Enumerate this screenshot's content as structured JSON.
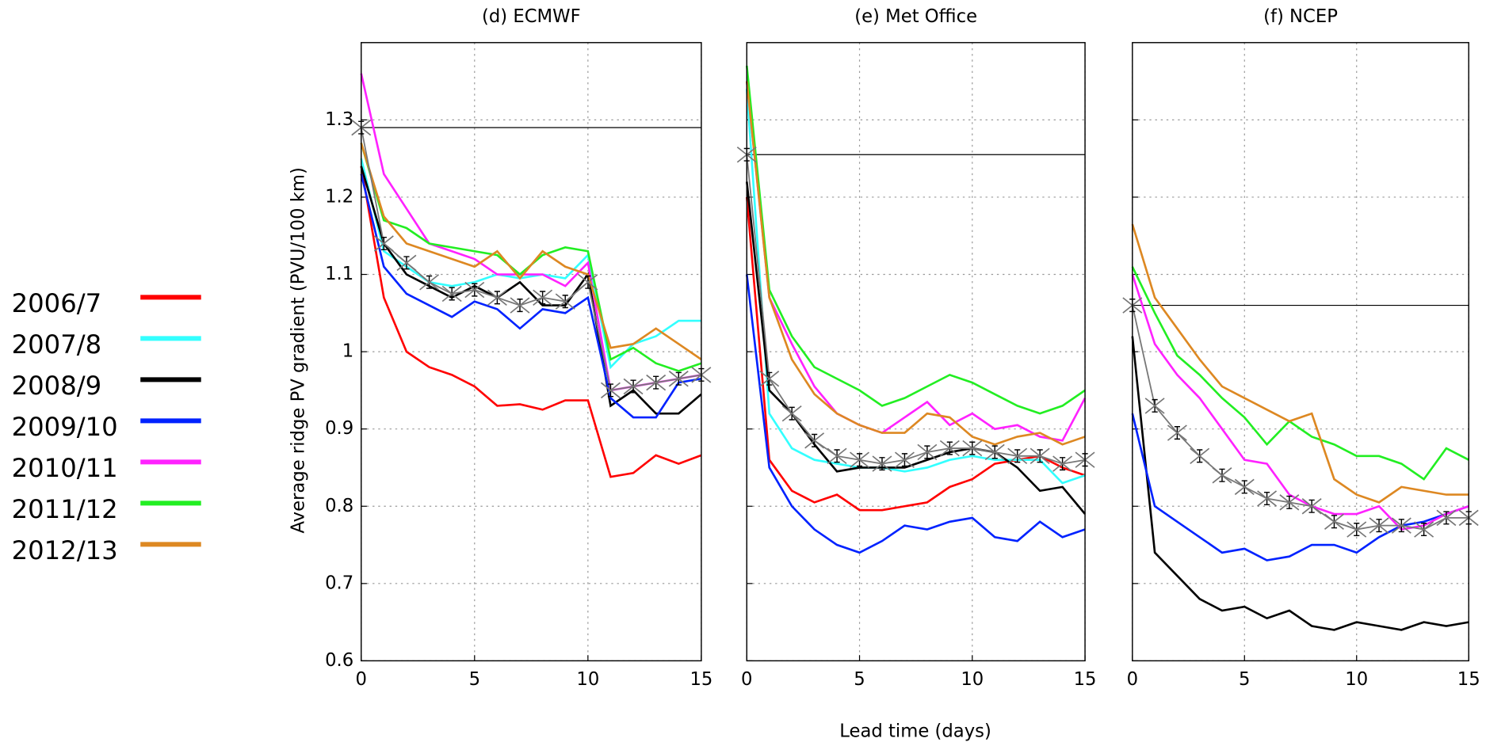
{
  "chart_data": [
    {
      "type": "line",
      "title": "(d) ECMWF",
      "y_label": "Average ridge PV gradient (PVU/100 km)",
      "x": [
        0,
        1,
        2,
        3,
        4,
        5,
        6,
        7,
        8,
        9,
        10,
        11,
        12,
        13,
        14,
        15
      ],
      "xlim": [
        0,
        15
      ],
      "xticks": [
        0,
        5,
        10,
        15
      ],
      "ylim": [
        0.6,
        1.4
      ],
      "yticks": [
        0.6,
        0.7,
        0.8,
        0.9,
        1,
        1.1,
        1.2,
        1.3
      ],
      "grid": true,
      "reference": 1.29,
      "series": [
        {
          "name": "2006/7",
          "color": "#ff0000",
          "values": [
            1.24,
            1.07,
            1.0,
            0.98,
            0.97,
            0.955,
            0.93,
            0.932,
            0.925,
            0.937,
            0.937,
            0.838,
            0.843,
            0.866,
            0.855,
            0.866
          ]
        },
        {
          "name": "2007/8",
          "color": "#33ffff",
          "values": [
            1.25,
            1.13,
            1.11,
            1.09,
            1.085,
            1.09,
            1.1,
            1.095,
            1.1,
            1.095,
            1.125,
            0.98,
            1.01,
            1.02,
            1.04,
            1.04
          ]
        },
        {
          "name": "2008/9",
          "color": "#000000",
          "values": [
            1.24,
            1.14,
            1.1,
            1.085,
            1.07,
            1.085,
            1.07,
            1.09,
            1.06,
            1.06,
            1.1,
            0.93,
            0.95,
            0.92,
            0.92,
            0.945
          ]
        },
        {
          "name": "2009/10",
          "color": "#0022ff",
          "values": [
            1.23,
            1.11,
            1.075,
            1.06,
            1.045,
            1.065,
            1.055,
            1.03,
            1.055,
            1.05,
            1.07,
            0.94,
            0.915,
            0.915,
            0.96,
            0.965
          ]
        },
        {
          "name": "2010/11",
          "color": "#ff22ff",
          "values": [
            1.36,
            1.23,
            1.185,
            1.14,
            1.13,
            1.12,
            1.1,
            1.1,
            1.1,
            1.085,
            1.115,
            0.95,
            0.955,
            0.96,
            0.965,
            0.97
          ]
        },
        {
          "name": "2011/12",
          "color": "#22ee22",
          "values": [
            1.27,
            1.17,
            1.16,
            1.14,
            1.135,
            1.13,
            1.125,
            1.1,
            1.125,
            1.135,
            1.13,
            0.99,
            1.005,
            0.985,
            0.975,
            0.985
          ]
        },
        {
          "name": "2012/13",
          "color": "#dd8822",
          "values": [
            1.27,
            1.175,
            1.14,
            1.13,
            1.12,
            1.11,
            1.13,
            1.095,
            1.13,
            1.11,
            1.1,
            1.005,
            1.01,
            1.03,
            1.01,
            0.99
          ]
        }
      ],
      "mean": {
        "color": "#777777",
        "values": [
          1.29,
          1.14,
          1.115,
          1.09,
          1.075,
          1.08,
          1.07,
          1.06,
          1.07,
          1.065,
          1.09,
          0.95,
          0.955,
          0.96,
          0.965,
          0.97
        ],
        "errors": [
          0.008,
          0.008,
          0.008,
          0.008,
          0.008,
          0.008,
          0.008,
          0.008,
          0.008,
          0.008,
          0.008,
          0.008,
          0.008,
          0.008,
          0.008,
          0.008
        ]
      }
    },
    {
      "type": "line",
      "title": "(e) Met Office",
      "x_label": "Lead time (days)",
      "x": [
        0,
        1,
        2,
        3,
        4,
        5,
        6,
        7,
        8,
        9,
        10,
        11,
        12,
        13,
        14,
        15
      ],
      "xlim": [
        0,
        15
      ],
      "xticks": [
        0,
        5,
        10,
        15
      ],
      "ylim": [
        0.6,
        1.4
      ],
      "grid": true,
      "reference": 1.255,
      "series": [
        {
          "name": "2006/7",
          "color": "#ff0000",
          "values": [
            1.2,
            0.86,
            0.82,
            0.805,
            0.815,
            0.795,
            0.795,
            0.8,
            0.805,
            0.825,
            0.835,
            0.855,
            0.86,
            0.865,
            0.85,
            0.84
          ]
        },
        {
          "name": "2007/8",
          "color": "#33ffff",
          "values": [
            1.34,
            0.92,
            0.875,
            0.86,
            0.855,
            0.85,
            0.85,
            0.845,
            0.85,
            0.86,
            0.865,
            0.86,
            0.86,
            0.86,
            0.83,
            0.84
          ]
        },
        {
          "name": "2008/9",
          "color": "#000000",
          "values": [
            1.22,
            0.95,
            0.92,
            0.88,
            0.845,
            0.85,
            0.85,
            0.85,
            0.86,
            0.87,
            0.875,
            0.87,
            0.85,
            0.82,
            0.825,
            0.79
          ]
        },
        {
          "name": "2009/10",
          "color": "#0022ff",
          "values": [
            1.1,
            0.85,
            0.8,
            0.77,
            0.75,
            0.74,
            0.755,
            0.775,
            0.77,
            0.78,
            0.785,
            0.76,
            0.755,
            0.78,
            0.76,
            0.77
          ]
        },
        {
          "name": "2010/11",
          "color": "#ff22ff",
          "values": [
            1.35,
            1.07,
            1.01,
            0.955,
            0.92,
            0.905,
            0.895,
            0.915,
            0.935,
            0.905,
            0.92,
            0.9,
            0.905,
            0.89,
            0.885,
            0.94
          ]
        },
        {
          "name": "2011/12",
          "color": "#22ee22",
          "values": [
            1.37,
            1.08,
            1.02,
            0.98,
            0.965,
            0.95,
            0.93,
            0.94,
            0.955,
            0.97,
            0.96,
            0.945,
            0.93,
            0.92,
            0.93,
            0.95
          ]
        },
        {
          "name": "2012/13",
          "color": "#dd8822",
          "values": [
            1.35,
            1.07,
            0.99,
            0.945,
            0.92,
            0.905,
            0.895,
            0.895,
            0.92,
            0.915,
            0.89,
            0.88,
            0.89,
            0.895,
            0.88,
            0.89
          ]
        }
      ],
      "mean": {
        "color": "#777777",
        "values": [
          1.255,
          0.965,
          0.92,
          0.885,
          0.865,
          0.86,
          0.855,
          0.86,
          0.87,
          0.875,
          0.875,
          0.87,
          0.865,
          0.865,
          0.855,
          0.86
        ],
        "errors": [
          0.008,
          0.008,
          0.008,
          0.008,
          0.008,
          0.008,
          0.008,
          0.008,
          0.008,
          0.008,
          0.008,
          0.008,
          0.008,
          0.008,
          0.008,
          0.008
        ]
      }
    },
    {
      "type": "line",
      "title": "(f) NCEP",
      "x": [
        0,
        1,
        2,
        3,
        4,
        5,
        6,
        7,
        8,
        9,
        10,
        11,
        12,
        13,
        14,
        15
      ],
      "xlim": [
        0,
        15
      ],
      "xticks": [
        0,
        5,
        10,
        15
      ],
      "ylim": [
        0.6,
        1.4
      ],
      "grid": true,
      "reference": 1.06,
      "series": [
        {
          "name": "2008/9",
          "color": "#000000",
          "values": [
            1.02,
            0.74,
            0.71,
            0.68,
            0.665,
            0.67,
            0.655,
            0.665,
            0.645,
            0.64,
            0.65,
            0.645,
            0.64,
            0.65,
            0.645,
            0.65
          ]
        },
        {
          "name": "2009/10",
          "color": "#0022ff",
          "values": [
            0.92,
            0.8,
            0.78,
            0.76,
            0.74,
            0.745,
            0.73,
            0.735,
            0.75,
            0.75,
            0.74,
            0.76,
            0.775,
            0.78,
            0.79,
            0.8
          ]
        },
        {
          "name": "2010/11",
          "color": "#ff22ff",
          "values": [
            1.1,
            1.01,
            0.97,
            0.94,
            0.9,
            0.86,
            0.855,
            0.815,
            0.8,
            0.79,
            0.79,
            0.8,
            0.77,
            0.775,
            0.79,
            0.8
          ]
        },
        {
          "name": "2011/12",
          "color": "#22ee22",
          "values": [
            1.11,
            1.05,
            0.995,
            0.97,
            0.94,
            0.915,
            0.88,
            0.91,
            0.89,
            0.88,
            0.865,
            0.865,
            0.855,
            0.835,
            0.875,
            0.86
          ]
        },
        {
          "name": "2012/13",
          "color": "#dd8822",
          "values": [
            1.165,
            1.07,
            1.03,
            0.99,
            0.955,
            0.94,
            0.925,
            0.91,
            0.92,
            0.835,
            0.815,
            0.805,
            0.825,
            0.82,
            0.815,
            0.815
          ]
        }
      ],
      "mean": {
        "color": "#777777",
        "values": [
          1.06,
          0.93,
          0.895,
          0.865,
          0.84,
          0.825,
          0.81,
          0.805,
          0.8,
          0.78,
          0.77,
          0.775,
          0.775,
          0.77,
          0.785,
          0.785
        ],
        "errors": [
          0.008,
          0.008,
          0.008,
          0.008,
          0.008,
          0.008,
          0.008,
          0.008,
          0.008,
          0.008,
          0.008,
          0.008,
          0.008,
          0.008,
          0.008,
          0.008
        ]
      }
    }
  ]
}
